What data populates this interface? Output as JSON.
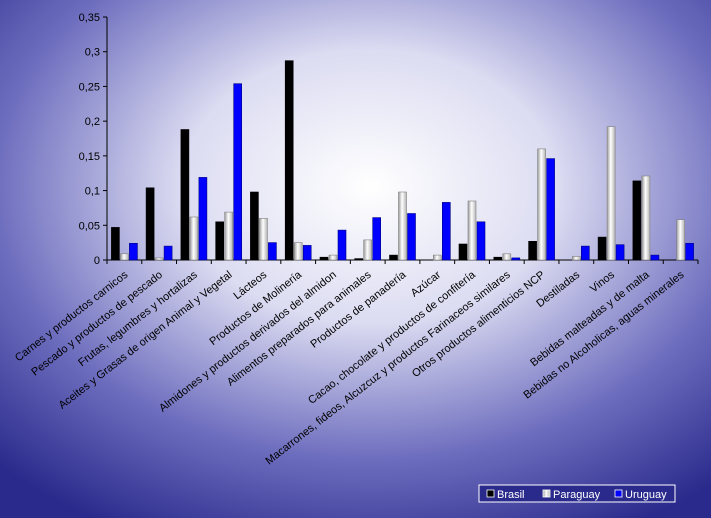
{
  "chart_data": {
    "type": "bar",
    "title": "",
    "xlabel": "",
    "ylabel": "",
    "ylim": [
      0,
      0.35
    ],
    "yticks": [
      "0",
      "0,05",
      "0,1",
      "0,15",
      "0,2",
      "0,25",
      "0,3",
      "0,35"
    ],
    "grid": false,
    "legend_position": "bottom-right",
    "categories": [
      "Carnes y productos carnicos",
      "Pescado y productos de pescado",
      "Frutas, legumbres y hortalizas",
      "Aceites y Grasas de origen Animal y Vegetal",
      "Lácteos",
      "Productos de Molinería",
      "Almidones y productos derivados del almidon",
      "Alimentos preparados para animales",
      "Productos de panadería",
      "Azúcar",
      "Cacao, chocolate y productos de confitería",
      "Macarrones, fideos, Alcuzcuz y productos Farinaceos similares",
      "Otros productos alimenticios NCP",
      "Destiladas",
      "Vinos",
      "Bebidas malteadas y de malta",
      "Bebidas no Alcoholicas, aguas minerales"
    ],
    "series": [
      {
        "name": "Brasil",
        "color": "#000000",
        "values": [
          0.047,
          0.104,
          0.188,
          0.055,
          0.098,
          0.287,
          0.004,
          0.002,
          0.007,
          0.0,
          0.023,
          0.004,
          0.027,
          0.0,
          0.033,
          0.114,
          0.0
        ]
      },
      {
        "name": "Paraguay",
        "color": "#d4d4d4",
        "values": [
          0.009,
          0.003,
          0.062,
          0.069,
          0.06,
          0.025,
          0.007,
          0.029,
          0.098,
          0.007,
          0.085,
          0.009,
          0.16,
          0.005,
          0.192,
          0.121,
          0.058
        ]
      },
      {
        "name": "Uruguay",
        "color": "#0000ff",
        "values": [
          0.024,
          0.02,
          0.119,
          0.254,
          0.025,
          0.021,
          0.043,
          0.061,
          0.067,
          0.083,
          0.055,
          0.003,
          0.146,
          0.02,
          0.022,
          0.007,
          0.024
        ]
      }
    ]
  }
}
